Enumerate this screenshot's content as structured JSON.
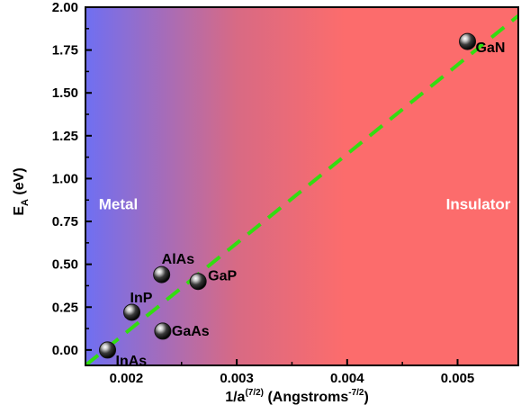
{
  "colors": {
    "metal": "#6f6ff2",
    "mid": "#d86a84",
    "insulator": "#fc6c6c",
    "fit_line": "#33dd11",
    "marker": "#111111"
  },
  "chart_data": {
    "type": "scatter",
    "xlabel": "1/a(7/2) (Angstroms-7/2)",
    "ylabel": "EA (eV)",
    "xlim": [
      0.00163,
      0.00555
    ],
    "ylim": [
      -0.09,
      2.0
    ],
    "x_ticks": [
      0.002,
      0.003,
      0.004,
      0.005
    ],
    "x_tick_labels": [
      "0.002",
      "0.003",
      "0.004",
      "0.005"
    ],
    "y_ticks": [
      0.0,
      0.25,
      0.5,
      0.75,
      1.0,
      1.25,
      1.5,
      1.75,
      2.0
    ],
    "y_tick_labels": [
      "0.00",
      "0.25",
      "0.50",
      "0.75",
      "1.00",
      "1.25",
      "1.50",
      "1.75",
      "2.00"
    ],
    "grid": false,
    "background": "horizontal gradient blue (metal) to red (insulator)",
    "regions": [
      {
        "label": "Metal",
        "x": 0.00175,
        "y": 0.82
      },
      {
        "label": "Insulator",
        "x": 0.00548,
        "y": 0.82
      }
    ],
    "points": [
      {
        "label": "InAs",
        "x": 0.00183,
        "y": 0.0
      },
      {
        "label": "InP",
        "x": 0.00205,
        "y": 0.22
      },
      {
        "label": "AlAs",
        "x": 0.00232,
        "y": 0.44
      },
      {
        "label": "GaAs",
        "x": 0.00233,
        "y": 0.11
      },
      {
        "label": "GaP",
        "x": 0.00265,
        "y": 0.4
      },
      {
        "label": "GaN",
        "x": 0.00509,
        "y": 1.8
      }
    ],
    "fit_line": {
      "style": "dashed",
      "x": [
        0.00163,
        0.00555
      ],
      "y": [
        -0.09,
        1.95
      ]
    }
  }
}
